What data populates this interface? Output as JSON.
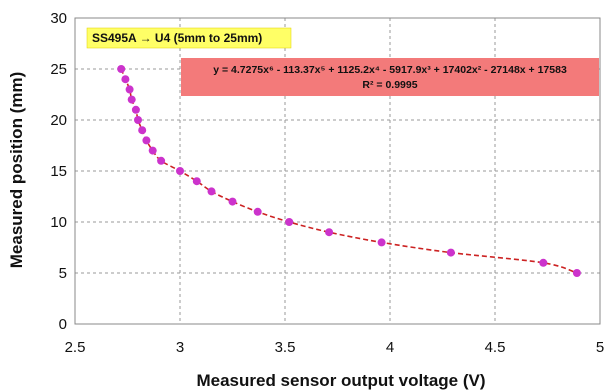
{
  "chart_data": {
    "type": "scatter",
    "title": "",
    "xlabel": "Measured sensor output voltage (V)",
    "ylabel": "Measured position (mm)",
    "xlim": [
      2.5,
      5
    ],
    "ylim": [
      0,
      30
    ],
    "xticks": [
      "2.5",
      "3",
      "3.5",
      "4",
      "4.5",
      "5"
    ],
    "yticks": [
      "0",
      "5",
      "10",
      "15",
      "20",
      "25",
      "30"
    ],
    "grid": true,
    "series": [
      {
        "marker_color": "#cc33cc",
        "trendline_color": "#cc2222",
        "trendline": "polynomial-6",
        "points": [
          {
            "x": 2.72,
            "y": 25
          },
          {
            "x": 2.74,
            "y": 24
          },
          {
            "x": 2.76,
            "y": 23
          },
          {
            "x": 2.77,
            "y": 22
          },
          {
            "x": 2.79,
            "y": 21
          },
          {
            "x": 2.8,
            "y": 20
          },
          {
            "x": 2.82,
            "y": 19
          },
          {
            "x": 2.84,
            "y": 18
          },
          {
            "x": 2.87,
            "y": 17
          },
          {
            "x": 2.91,
            "y": 16
          },
          {
            "x": 3.0,
            "y": 15
          },
          {
            "x": 3.08,
            "y": 14
          },
          {
            "x": 3.15,
            "y": 13
          },
          {
            "x": 3.25,
            "y": 12
          },
          {
            "x": 3.37,
            "y": 11
          },
          {
            "x": 3.52,
            "y": 10
          },
          {
            "x": 3.71,
            "y": 9
          },
          {
            "x": 3.96,
            "y": 8
          },
          {
            "x": 4.29,
            "y": 7
          },
          {
            "x": 4.73,
            "y": 6
          },
          {
            "x": 4.89,
            "y": 5
          }
        ]
      }
    ],
    "annotations": {
      "sensor_label": "SS495A → U4 (5mm to 25mm)",
      "equation": "y = 4.7275x⁶ - 113.37x⁵ + 1125.2x⁴ - 5917.9x³ + 17402x² - 27148x + 17583",
      "r_squared": "R² = 0.9995"
    }
  }
}
